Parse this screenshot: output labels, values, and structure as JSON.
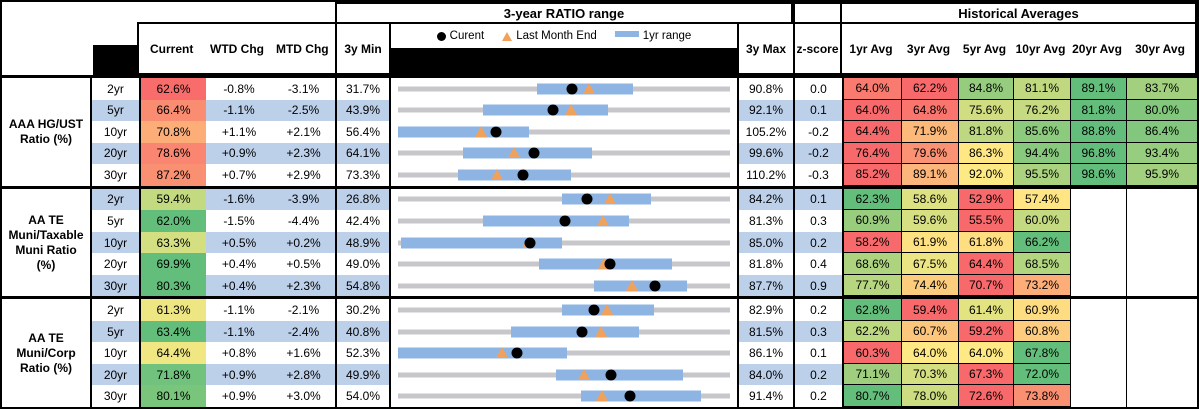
{
  "header": {
    "chart_section_title": "3-year RATIO range",
    "averages_section_title": "Historical Averages",
    "columns": {
      "current": "Current",
      "wtd": "WTD Chg",
      "mtd": "MTD Chg",
      "min3y": "3y Min",
      "max3y": "3y Max",
      "zscore": "z-score"
    },
    "avg_columns": [
      "1yr Avg",
      "3yr Avg",
      "5yr Avg",
      "10yr Avg",
      "20yr Avg",
      "30yr Avg"
    ],
    "legend": [
      {
        "marker": "current-dot-icon",
        "label": "Curent"
      },
      {
        "marker": "last-month-triangle-icon",
        "label": "Last Month End"
      },
      {
        "marker": "1yr-range-bar-icon",
        "label": "1yr range"
      }
    ]
  },
  "colors": {
    "stripe_blue": "#bdd0ea",
    "range_bar_blue": "#8db4e3",
    "track_gray": "#c7c7cb",
    "marker_orange": "#f0a15c",
    "heat_red": "#f8696b",
    "heat_yellow": "#ffeb84",
    "heat_green": "#63be7b",
    "blackout": "#000000"
  },
  "chart_data": {
    "type": "table",
    "description": "Muni ratio monitor: per-row 3-year range strip (gray track = 3y Min to 3y Max, blue bar = 1yr range, black dot = Current, orange triangle = Last Month End) plus heat-mapped historical averages. Bar/triangle numbers estimated from pixels.",
    "row_groups": [
      {
        "label": "AAA HG/UST Ratio (%)",
        "rows": [
          {
            "tenor": "2yr",
            "current": "62.6%",
            "wtd": "-0.8%",
            "mtd": "-3.1%",
            "min": "31.7%",
            "max": "90.8%",
            "z": "0.0",
            "range_1yr": [
              56.4,
              73.6
            ],
            "last_month": 65.7,
            "avgs": [
              "64.0%",
              "62.2%",
              "84.8%",
              "81.1%",
              "89.1%",
              "83.7%"
            ]
          },
          {
            "tenor": "5yr",
            "current": "66.4%",
            "wtd": "-1.1%",
            "mtd": "-2.5%",
            "min": "43.9%",
            "max": "92.1%",
            "z": "0.1",
            "range_1yr": [
              56.3,
              74.4
            ],
            "last_month": 69.0,
            "avgs": [
              "64.0%",
              "64.8%",
              "75.6%",
              "76.2%",
              "81.8%",
              "80.0%"
            ]
          },
          {
            "tenor": "10yr",
            "current": "70.8%",
            "wtd": "+1.1%",
            "mtd": "+2.1%",
            "min": "56.4%",
            "max": "105.2%",
            "z": "-0.2",
            "range_1yr": [
              56.4,
              75.6
            ],
            "last_month": 68.6,
            "avgs": [
              "64.4%",
              "71.9%",
              "81.8%",
              "85.6%",
              "88.8%",
              "86.4%"
            ]
          },
          {
            "tenor": "20yr",
            "current": "78.6%",
            "wtd": "+0.9%",
            "mtd": "+2.3%",
            "min": "64.1%",
            "max": "99.6%",
            "z": "-0.2",
            "range_1yr": [
              71.1,
              84.8
            ],
            "last_month": 76.5,
            "avgs": [
              "76.4%",
              "79.6%",
              "86.3%",
              "94.4%",
              "96.8%",
              "93.4%"
            ]
          },
          {
            "tenor": "30yr",
            "current": "87.2%",
            "wtd": "+0.7%",
            "mtd": "+2.9%",
            "min": "73.3%",
            "max": "110.2%",
            "z": "-0.3",
            "range_1yr": [
              80.0,
              92.5
            ],
            "last_month": 84.3,
            "avgs": [
              "85.2%",
              "89.1%",
              "92.0%",
              "95.5%",
              "98.6%",
              "95.9%"
            ]
          }
        ]
      },
      {
        "label": "AA TE Muni/Taxable Muni Ratio (%)",
        "rows": [
          {
            "tenor": "2yr",
            "current": "59.4%",
            "wtd": "-1.6%",
            "mtd": "-3.9%",
            "min": "26.8%",
            "max": "84.2%",
            "z": "0.1",
            "range_1yr": [
              55.2,
              70.6
            ],
            "last_month": 63.5,
            "avgs": [
              "62.3%",
              "58.6%",
              "52.9%",
              "57.4%",
              null,
              null
            ]
          },
          {
            "tenor": "5yr",
            "current": "62.0%",
            "wtd": "-1.5%",
            "mtd": "-4.4%",
            "min": "42.4%",
            "max": "81.3%",
            "z": "0.3",
            "range_1yr": [
              52.4,
              69.5
            ],
            "last_month": 66.4,
            "avgs": [
              "60.9%",
              "59.6%",
              "55.5%",
              "60.0%",
              null,
              null
            ]
          },
          {
            "tenor": "10yr",
            "current": "63.3%",
            "wtd": "+0.5%",
            "mtd": "+0.2%",
            "min": "48.9%",
            "max": "85.0%",
            "z": "0.2",
            "range_1yr": [
              49.2,
              66.7
            ],
            "last_month": 63.0,
            "avgs": [
              "58.2%",
              "61.9%",
              "61.8%",
              "66.2%",
              null,
              null
            ]
          },
          {
            "tenor": "20yr",
            "current": "69.9%",
            "wtd": "+0.4%",
            "mtd": "+0.5%",
            "min": "49.0%",
            "max": "81.8%",
            "z": "0.4",
            "range_1yr": [
              62.9,
              76.1
            ],
            "last_month": 69.4,
            "avgs": [
              "68.6%",
              "67.5%",
              "64.4%",
              "68.5%",
              null,
              null
            ]
          },
          {
            "tenor": "30yr",
            "current": "80.3%",
            "wtd": "+0.4%",
            "mtd": "+2.3%",
            "min": "54.8%",
            "max": "87.7%",
            "z": "0.9",
            "range_1yr": [
              74.2,
              83.4
            ],
            "last_month": 78.0,
            "avgs": [
              "77.7%",
              "74.4%",
              "70.7%",
              "73.2%",
              null,
              null
            ]
          }
        ]
      },
      {
        "label": "AA TE Muni/Corp Ratio (%)",
        "rows": [
          {
            "tenor": "2yr",
            "current": "61.3%",
            "wtd": "-1.1%",
            "mtd": "-2.1%",
            "min": "30.2%",
            "max": "82.9%",
            "z": "0.2",
            "range_1yr": [
              56.2,
              70.8
            ],
            "last_month": 63.4,
            "avgs": [
              "62.8%",
              "59.4%",
              "61.4%",
              "60.9%",
              null,
              null
            ]
          },
          {
            "tenor": "5yr",
            "current": "63.4%",
            "wtd": "-1.1%",
            "mtd": "-2.4%",
            "min": "40.8%",
            "max": "81.5%",
            "z": "0.3",
            "range_1yr": [
              54.7,
              70.4
            ],
            "last_month": 65.7,
            "avgs": [
              "62.2%",
              "60.7%",
              "59.2%",
              "60.8%",
              null,
              null
            ]
          },
          {
            "tenor": "10yr",
            "current": "64.4%",
            "wtd": "+0.8%",
            "mtd": "+1.6%",
            "min": "52.3%",
            "max": "86.1%",
            "z": "0.1",
            "range_1yr": [
              52.3,
              69.5
            ],
            "last_month": 62.9,
            "avgs": [
              "60.3%",
              "64.0%",
              "64.0%",
              "67.8%",
              null,
              null
            ]
          },
          {
            "tenor": "20yr",
            "current": "71.8%",
            "wtd": "+0.9%",
            "mtd": "+2.8%",
            "min": "49.9%",
            "max": "84.0%",
            "z": "0.2",
            "range_1yr": [
              66.1,
              79.2
            ],
            "last_month": 69.0,
            "avgs": [
              "71.1%",
              "70.3%",
              "67.3%",
              "72.0%",
              null,
              null
            ]
          },
          {
            "tenor": "30yr",
            "current": "80.1%",
            "wtd": "+0.9%",
            "mtd": "+3.0%",
            "min": "54.0%",
            "max": "91.4%",
            "z": "0.2",
            "range_1yr": [
              74.6,
              88.1
            ],
            "last_month": 77.0,
            "avgs": [
              "80.7%",
              "78.0%",
              "72.6%",
              "73.8%",
              null,
              null
            ]
          }
        ]
      }
    ]
  }
}
